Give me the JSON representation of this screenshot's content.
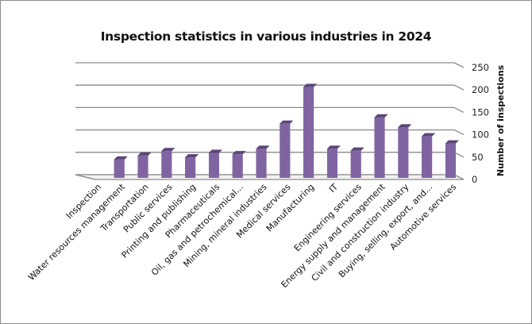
{
  "chart_data": {
    "type": "bar",
    "title": "Inspection statistics in various industries in 2024",
    "xlabel": "",
    "ylabel": "Number of inspections",
    "ylim": [
      0,
      250
    ],
    "yticks": [
      0,
      50,
      100,
      150,
      200,
      250
    ],
    "grid": true,
    "legend": "none",
    "style": "3d-column",
    "bar_color": "#8064a2",
    "categories": [
      "Inspection",
      "Water resources management",
      "Transportation",
      "Public services",
      "Printing and publishing",
      "Pharmaceuticals",
      "Oil, gas and petrochemical...",
      "Mining, mineral industries",
      "Medical services",
      "Manufacturing",
      "IT",
      "Engineering services",
      "Energy supply and management",
      "Civil and construction industry",
      "Buying, selling, export, and...",
      "Automotive services"
    ],
    "values": [
      0,
      48,
      57,
      67,
      53,
      63,
      60,
      72,
      128,
      210,
      72,
      68,
      142,
      120,
      100,
      84
    ]
  }
}
